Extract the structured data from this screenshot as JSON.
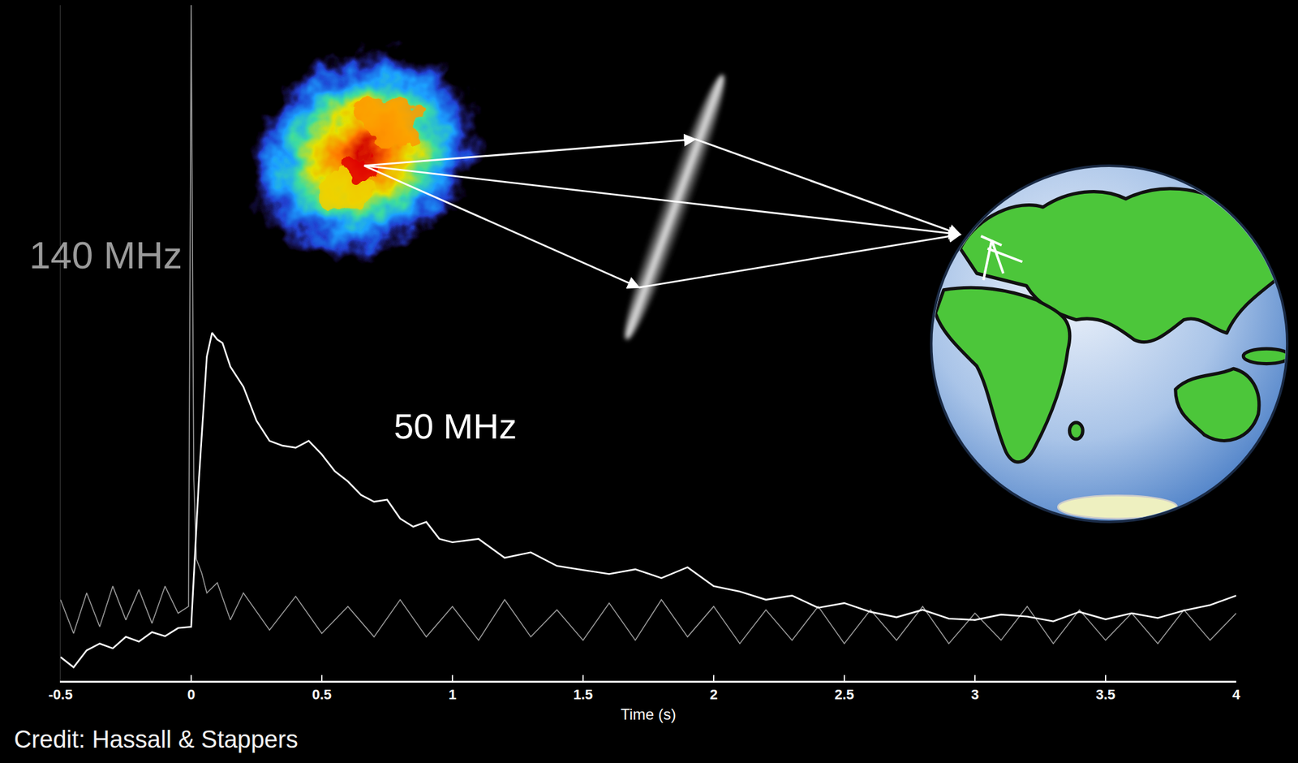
{
  "chart_data": {
    "type": "line",
    "xlabel": "Time (s)",
    "xlim": [
      -0.5,
      4
    ],
    "xticks": [
      -0.5,
      0,
      0.5,
      1,
      1.5,
      2,
      2.5,
      3,
      3.5,
      4
    ],
    "ylim": [
      0,
      100
    ],
    "tick_labels": "x",
    "grid": false,
    "annotations": [
      "Credit: Hassall & Stappers"
    ],
    "series": [
      {
        "name": "140 MHz",
        "color": "#9a9a9a",
        "x": [
          -0.5,
          -0.45,
          -0.4,
          -0.35,
          -0.3,
          -0.25,
          -0.2,
          -0.15,
          -0.1,
          -0.05,
          -0.01,
          0,
          0.01,
          0.02,
          0.04,
          0.06,
          0.1,
          0.15,
          0.2,
          0.3,
          0.4,
          0.5,
          0.6,
          0.7,
          0.8,
          0.9,
          1.0,
          1.1,
          1.2,
          1.3,
          1.4,
          1.5,
          1.6,
          1.7,
          1.8,
          1.9,
          2.0,
          2.1,
          2.2,
          2.3,
          2.4,
          2.5,
          2.6,
          2.7,
          2.8,
          2.9,
          3.0,
          3.1,
          3.2,
          3.3,
          3.4,
          3.5,
          3.6,
          3.7,
          3.8,
          3.9,
          4.0
        ],
        "values": [
          12,
          7,
          13,
          8,
          14,
          9,
          13.5,
          8.5,
          14,
          10,
          11,
          100,
          30,
          18,
          16,
          13,
          14.5,
          9,
          13,
          7.5,
          12.5,
          7,
          11,
          6.5,
          12,
          6.5,
          11,
          6,
          12,
          6.5,
          10.5,
          6,
          11.5,
          6,
          12,
          6.5,
          11,
          5.5,
          10.5,
          6,
          11,
          5.5,
          10.5,
          6,
          11,
          5.5,
          10,
          6,
          11,
          5.5,
          10.5,
          6,
          10,
          5.5,
          10.5,
          6,
          10
        ]
      },
      {
        "name": "50 MHz",
        "color": "#ffffff",
        "x": [
          -0.5,
          -0.45,
          -0.4,
          -0.35,
          -0.3,
          -0.25,
          -0.2,
          -0.15,
          -0.1,
          -0.05,
          0,
          0.03,
          0.06,
          0.08,
          0.1,
          0.12,
          0.15,
          0.2,
          0.25,
          0.3,
          0.35,
          0.4,
          0.45,
          0.5,
          0.55,
          0.6,
          0.65,
          0.7,
          0.75,
          0.8,
          0.85,
          0.9,
          0.95,
          1.0,
          1.1,
          1.2,
          1.3,
          1.4,
          1.5,
          1.6,
          1.7,
          1.8,
          1.9,
          2.0,
          2.1,
          2.2,
          2.3,
          2.4,
          2.5,
          2.6,
          2.7,
          2.8,
          2.9,
          3.0,
          3.1,
          3.2,
          3.3,
          3.4,
          3.5,
          3.6,
          3.7,
          3.8,
          3.9,
          4.0
        ],
        "values": [
          3.5,
          2.0,
          4.5,
          5.5,
          4.8,
          6.5,
          5.8,
          7.2,
          6.6,
          7.8,
          8.0,
          30,
          48,
          51.5,
          50.5,
          50,
          46.5,
          43.5,
          38.5,
          35.5,
          34.8,
          34.5,
          35.5,
          33.5,
          31,
          29.5,
          27.5,
          26.5,
          26.8,
          24,
          22.8,
          23.5,
          21,
          20.5,
          21,
          18.2,
          19,
          17,
          16.4,
          15.8,
          16.5,
          15.2,
          16.8,
          14,
          13.2,
          12,
          12.6,
          10.8,
          11.5,
          10.2,
          9.4,
          10.5,
          9.2,
          9.0,
          9.8,
          9.5,
          8.8,
          10.2,
          9.1,
          10,
          9.3,
          10.4,
          11.2,
          12.6
        ]
      }
    ]
  }
}
